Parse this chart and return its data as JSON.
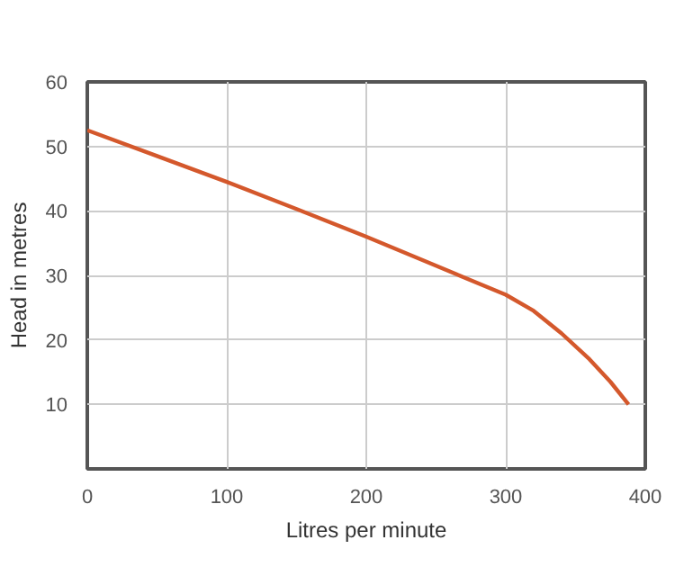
{
  "chart_data": {
    "type": "line",
    "xlabel": "Litres per minute",
    "ylabel": "Head in metres",
    "x": [
      0,
      50,
      100,
      150,
      200,
      250,
      300,
      320,
      340,
      360,
      375,
      388
    ],
    "series": [
      {
        "color": "#d4582c",
        "values": [
          52.5,
          48.5,
          44.5,
          40.3,
          36,
          31.5,
          27,
          24.5,
          21,
          17,
          13.5,
          10
        ]
      }
    ],
    "xlim": [
      0,
      400
    ],
    "ylim": [
      0,
      60
    ],
    "xticks": [
      0,
      100,
      200,
      300,
      400
    ],
    "yticks": [
      10,
      20,
      30,
      40,
      50,
      60
    ],
    "grid": true,
    "marker": "none",
    "line_style": "solid"
  }
}
